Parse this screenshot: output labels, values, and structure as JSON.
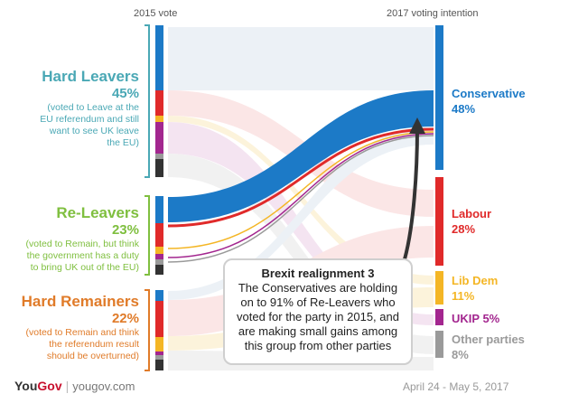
{
  "headers": {
    "left": "2015 vote",
    "right": "2017 voting intention"
  },
  "groups": [
    {
      "title": "Hard Leavers",
      "pct": "45%",
      "desc_lines": [
        "(voted to Leave at the",
        "EU referendum and still",
        "want to see UK leave",
        "the EU)"
      ],
      "color": "#4aa8b5"
    },
    {
      "title": "Re-Leavers",
      "pct": "23%",
      "desc_lines": [
        "(voted to Remain, but think",
        "the government has a duty",
        "to bring UK out of the EU)"
      ],
      "color": "#7fbf3f"
    },
    {
      "title": "Hard Remainers",
      "pct": "22%",
      "desc_lines": [
        "(voted to Remain and think",
        "the referendum result",
        "should be overturned)"
      ],
      "color": "#e07b29"
    }
  ],
  "parties": [
    {
      "name": "Conservative",
      "pct": "48%",
      "color": "#1c7ac7"
    },
    {
      "name": "Labour",
      "pct": "28%",
      "color": "#e02a2a"
    },
    {
      "name": "Lib Dem",
      "pct": "11%",
      "color": "#f4b625"
    },
    {
      "name": "UKIP",
      "pct": "5%",
      "color": "#a3268f"
    },
    {
      "name": "Other parties",
      "pct": "8%",
      "color": "#9a9a9a"
    }
  ],
  "callout": {
    "title": "Brexit realignment 3",
    "lines": [
      "The Conservatives are holding",
      "on to 91% of Re-Leavers who",
      "voted for the party in 2015, and",
      "are making small gains among",
      "this group from other parties"
    ]
  },
  "footer": {
    "brand_you": "You",
    "brand_gov": "Gov",
    "site": "yougov.com",
    "date": "April 24 - May 5, 2017"
  }
}
